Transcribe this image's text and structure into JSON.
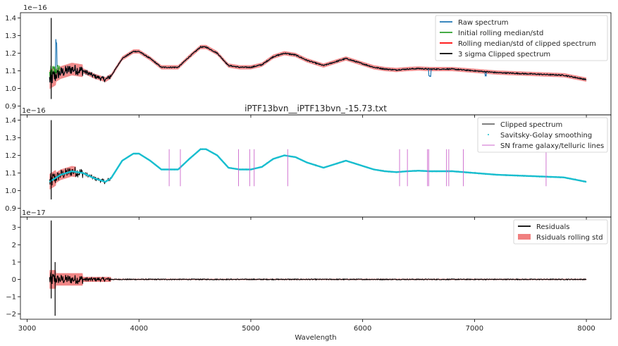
{
  "chart_data": [
    {
      "type": "line",
      "title": "",
      "exponent_label": "1e−16",
      "xlim": [
        2940,
        8220
      ],
      "ylim": [
        0.85,
        1.43
      ],
      "yticks": [
        0.9,
        1.0,
        1.1,
        1.2,
        1.3,
        1.4
      ],
      "ytick_labels": [
        "0.9",
        "1.0",
        "1.1",
        "1.2",
        "1.3",
        "1.4"
      ],
      "xticks": [
        3000,
        4000,
        5000,
        6000,
        7000,
        8000
      ],
      "xtick_labels": [],
      "legend_position": "upper right",
      "series": [
        {
          "name": "Raw spectrum",
          "color": "#1f77b4"
        },
        {
          "name": "Initial rolling median/std",
          "color": "#2ca02c"
        },
        {
          "name": "Rolling median/std of clipped spectrum",
          "color": "#ff0000"
        },
        {
          "name": "3 sigma Clipped spectrum",
          "color": "#000000"
        }
      ],
      "continuum": {
        "x": [
          3200,
          3300,
          3400,
          3500,
          3600,
          3700,
          3750,
          3850,
          3950,
          4000,
          4100,
          4200,
          4350,
          4450,
          4550,
          4600,
          4700,
          4800,
          4900,
          5000,
          5100,
          5200,
          5300,
          5400,
          5500,
          5650,
          5750,
          5850,
          5950,
          6100,
          6200,
          6300,
          6400,
          6500,
          6600,
          6800,
          7000,
          7200,
          7400,
          7600,
          7800,
          8000
        ],
        "y": [
          1.05,
          1.09,
          1.11,
          1.1,
          1.07,
          1.05,
          1.07,
          1.17,
          1.21,
          1.21,
          1.17,
          1.12,
          1.12,
          1.18,
          1.235,
          1.235,
          1.2,
          1.13,
          1.12,
          1.12,
          1.135,
          1.18,
          1.2,
          1.19,
          1.16,
          1.13,
          1.15,
          1.17,
          1.15,
          1.12,
          1.11,
          1.105,
          1.11,
          1.113,
          1.11,
          1.11,
          1.1,
          1.09,
          1.085,
          1.08,
          1.075,
          1.05
        ]
      },
      "annotation": "iPTF13bvn__iPTF13bvn_-15.73.txt"
    },
    {
      "type": "line",
      "title": "",
      "exponent_label": "1e−16",
      "xlim": [
        2940,
        8220
      ],
      "ylim": [
        0.85,
        1.43
      ],
      "yticks": [
        0.9,
        1.0,
        1.1,
        1.2,
        1.3,
        1.4
      ],
      "ytick_labels": [
        "0.9",
        "1.0",
        "1.1",
        "1.2",
        "1.3",
        "1.4"
      ],
      "xticks": [
        3000,
        4000,
        5000,
        6000,
        7000,
        8000
      ],
      "xtick_labels": [],
      "legend_position": "upper right",
      "series": [
        {
          "name": "Clipped spectrum",
          "color": "#000000"
        },
        {
          "name": "Savitsky-Golay smoothing",
          "color": "#17becf"
        },
        {
          "name": "SN frame galaxy/telluric lines",
          "color": "#cc66cc"
        }
      ],
      "line_positions": [
        4270,
        4370,
        4890,
        4990,
        5030,
        5330,
        6330,
        6400,
        6580,
        6590,
        6750,
        6770,
        6900,
        7640
      ]
    },
    {
      "type": "line",
      "title": "",
      "exponent_label": "1e−17",
      "xlim": [
        2940,
        8220
      ],
      "ylim": [
        -2.3,
        3.6
      ],
      "yticks": [
        -2,
        -1,
        0,
        1,
        2,
        3
      ],
      "ytick_labels": [
        "−2",
        "−1",
        "0",
        "1",
        "2",
        "3"
      ],
      "xticks": [
        3000,
        4000,
        5000,
        6000,
        7000,
        8000
      ],
      "xtick_labels": [
        "3000",
        "4000",
        "5000",
        "6000",
        "7000",
        "8000"
      ],
      "xlabel": "Wavelength",
      "legend_position": "upper right",
      "series": [
        {
          "name": "Residuals",
          "color": "#000000"
        },
        {
          "name": "Rsiduals rolling std",
          "color": "#f08080"
        }
      ]
    }
  ]
}
